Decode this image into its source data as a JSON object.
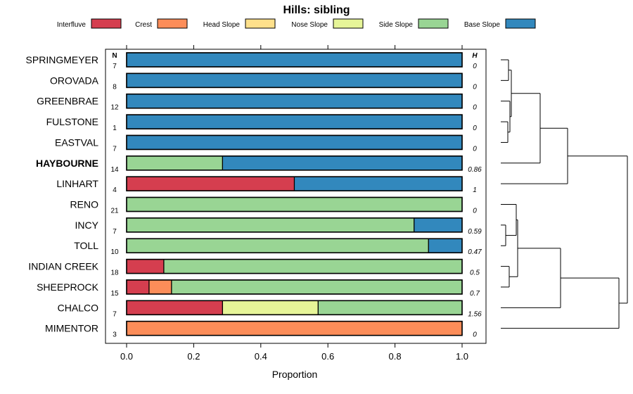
{
  "chart_data": {
    "type": "bar",
    "orientation": "horizontal",
    "stacked": true,
    "title": "Hills: sibling",
    "xlabel": "Proportion",
    "ylabel": "",
    "xlim": [
      0,
      1
    ],
    "xticks": [
      "0.0",
      "0.2",
      "0.4",
      "0.6",
      "0.8",
      "1.0"
    ],
    "legend_position": "top",
    "n_header": "N",
    "h_header": "H",
    "series": [
      {
        "name": "Interfluve",
        "color": "#d53e4f"
      },
      {
        "name": "Crest",
        "color": "#fc8d59"
      },
      {
        "name": "Head Slope",
        "color": "#fee08b"
      },
      {
        "name": "Nose Slope",
        "color": "#e6f598"
      },
      {
        "name": "Side Slope",
        "color": "#99d594"
      },
      {
        "name": "Base Slope",
        "color": "#3288bd"
      }
    ],
    "rows": [
      {
        "label": "SPRINGMEYER",
        "bold": false,
        "n": "7",
        "h": "0",
        "values": [
          0,
          0,
          0,
          0,
          0,
          1
        ]
      },
      {
        "label": "OROVADA",
        "bold": false,
        "n": "8",
        "h": "0",
        "values": [
          0,
          0,
          0,
          0,
          0,
          1
        ]
      },
      {
        "label": "GREENBRAE",
        "bold": false,
        "n": "12",
        "h": "0",
        "values": [
          0,
          0,
          0,
          0,
          0,
          1
        ]
      },
      {
        "label": "FULSTONE",
        "bold": false,
        "n": "1",
        "h": "0",
        "values": [
          0,
          0,
          0,
          0,
          0,
          1
        ]
      },
      {
        "label": "EASTVAL",
        "bold": false,
        "n": "7",
        "h": "0",
        "values": [
          0,
          0,
          0,
          0,
          0,
          1
        ]
      },
      {
        "label": "HAYBOURNE",
        "bold": true,
        "n": "14",
        "h": "0.86",
        "values": [
          0,
          0,
          0,
          0,
          0.286,
          0.714
        ]
      },
      {
        "label": "LINHART",
        "bold": false,
        "n": "4",
        "h": "1",
        "values": [
          0.5,
          0,
          0,
          0,
          0,
          0.5
        ]
      },
      {
        "label": "RENO",
        "bold": false,
        "n": "21",
        "h": "0",
        "values": [
          0,
          0,
          0,
          0,
          1,
          0
        ]
      },
      {
        "label": "INCY",
        "bold": false,
        "n": "7",
        "h": "0.59",
        "values": [
          0,
          0,
          0,
          0,
          0.857,
          0.143
        ]
      },
      {
        "label": "TOLL",
        "bold": false,
        "n": "10",
        "h": "0.47",
        "values": [
          0,
          0,
          0,
          0,
          0.9,
          0.1
        ]
      },
      {
        "label": "INDIAN CREEK",
        "bold": false,
        "n": "18",
        "h": "0.5",
        "values": [
          0.111,
          0,
          0,
          0,
          0.889,
          0
        ]
      },
      {
        "label": "SHEEPROCK",
        "bold": false,
        "n": "15",
        "h": "0.7",
        "values": [
          0.067,
          0.067,
          0,
          0,
          0.866,
          0
        ]
      },
      {
        "label": "CHALCO",
        "bold": false,
        "n": "7",
        "h": "1.56",
        "values": [
          0.286,
          0,
          0,
          0.285,
          0.429,
          0
        ]
      },
      {
        "label": "MIMENTOR",
        "bold": false,
        "n": "3",
        "h": "0",
        "values": [
          0,
          1,
          0,
          0,
          0,
          0
        ]
      }
    ]
  }
}
